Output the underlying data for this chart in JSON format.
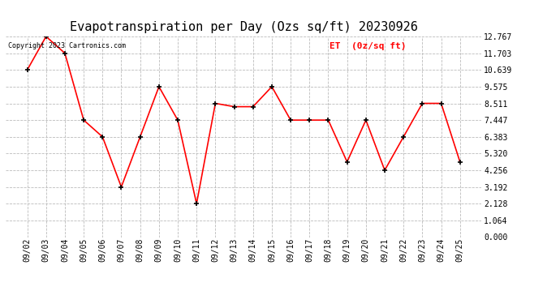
{
  "title": "Evapotranspiration per Day (Ozs sq/ft) 20230926",
  "copyright": "Copyright 2023 Cartronics.com",
  "legend_label": "ET  (0z/sq ft)",
  "dates": [
    "09/02",
    "09/03",
    "09/04",
    "09/05",
    "09/06",
    "09/07",
    "09/08",
    "09/09",
    "09/10",
    "09/11",
    "09/12",
    "09/13",
    "09/14",
    "09/15",
    "09/16",
    "09/17",
    "09/18",
    "09/19",
    "09/20",
    "09/21",
    "09/22",
    "09/23",
    "09/24",
    "09/25"
  ],
  "values": [
    10.639,
    12.767,
    11.703,
    7.447,
    6.383,
    3.192,
    6.383,
    9.575,
    7.447,
    2.128,
    8.511,
    8.3,
    8.3,
    9.575,
    7.447,
    7.447,
    7.447,
    4.788,
    7.447,
    4.256,
    6.383,
    8.511,
    8.511,
    4.788
  ],
  "line_color": "red",
  "marker_color": "black",
  "grid_color": "#bbbbbb",
  "bg_color": "white",
  "title_fontsize": 11,
  "copyright_fontsize": 6,
  "legend_fontsize": 8,
  "tick_fontsize": 7,
  "ylim": [
    0,
    12.767
  ],
  "yticks": [
    0.0,
    1.064,
    2.128,
    3.192,
    4.256,
    5.32,
    6.383,
    7.447,
    8.511,
    9.575,
    10.639,
    11.703,
    12.767
  ]
}
